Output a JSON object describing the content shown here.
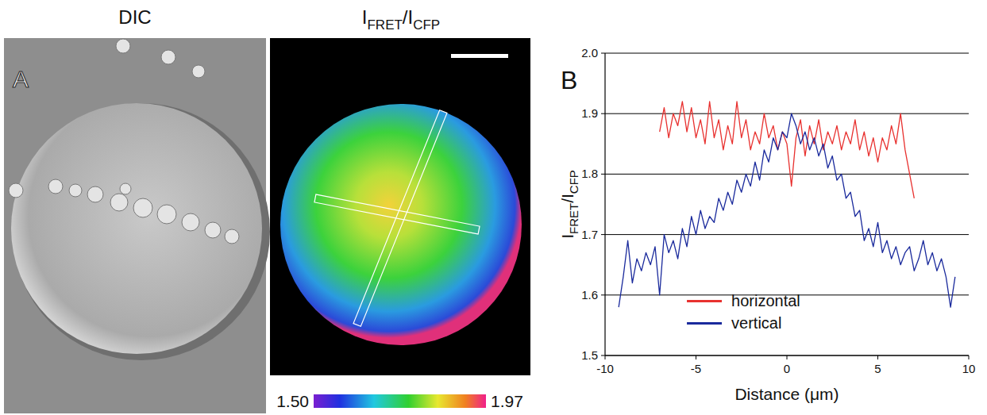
{
  "chart_data": [
    {
      "type": "image",
      "panel_label": "A",
      "title": "DIC"
    },
    {
      "type": "image",
      "title": "IFRET/ICFP",
      "colorbar": {
        "range": [
          1.5,
          1.97
        ],
        "ticks": [
          {
            "value": 1.5,
            "label": "1.50"
          },
          1.97
        ]
      }
    },
    {
      "type": "line",
      "panel_label": "B",
      "x_label": "Distance (μm)",
      "y_label": "IFRET/ICFP",
      "xlim": [
        -10,
        10
      ],
      "xticks": [
        -10,
        -5,
        0,
        5,
        10
      ],
      "ylim": [
        1.5,
        2.0
      ],
      "yticks": [
        1.5,
        1.6,
        1.7,
        1.8,
        1.9,
        {
          "value": 2,
          "label": "2.0"
        }
      ],
      "grid": true,
      "legend": "lower center",
      "series": [
        {
          "name": "horizontal",
          "color": "#e8312f",
          "x": [
            -7.0,
            -6.75,
            -6.5,
            -6.25,
            -6.0,
            -5.75,
            -5.5,
            -5.25,
            -5.0,
            -4.75,
            -4.5,
            -4.25,
            -4.0,
            -3.75,
            -3.5,
            -3.25,
            -3.0,
            -2.75,
            -2.5,
            -2.25,
            -2.0,
            -1.75,
            -1.5,
            -1.25,
            -1.0,
            -0.75,
            -0.5,
            -0.25,
            0.0,
            0.25,
            0.5,
            0.75,
            1.0,
            1.25,
            1.5,
            1.75,
            2.0,
            2.25,
            2.5,
            2.75,
            3.0,
            3.25,
            3.5,
            3.75,
            4.0,
            4.25,
            4.5,
            4.75,
            5.0,
            5.25,
            5.5,
            5.75,
            6.0,
            6.25,
            6.5,
            6.75,
            7.0
          ],
          "values": [
            1.87,
            1.91,
            1.86,
            1.9,
            1.88,
            1.92,
            1.87,
            1.91,
            1.86,
            1.89,
            1.85,
            1.92,
            1.86,
            1.89,
            1.84,
            1.88,
            1.85,
            1.92,
            1.86,
            1.89,
            1.84,
            1.87,
            1.85,
            1.9,
            1.86,
            1.88,
            1.84,
            1.87,
            1.85,
            1.78,
            1.86,
            1.89,
            1.83,
            1.88,
            1.85,
            1.89,
            1.84,
            1.87,
            1.85,
            1.88,
            1.84,
            1.87,
            1.85,
            1.89,
            1.84,
            1.87,
            1.83,
            1.86,
            1.82,
            1.86,
            1.84,
            1.88,
            1.85,
            1.9,
            1.84,
            1.8,
            1.76
          ]
        },
        {
          "name": "vertical",
          "color": "#1a2a9c",
          "x": [
            -9.25,
            -9.0,
            -8.75,
            -8.5,
            -8.25,
            -8.0,
            -7.75,
            -7.5,
            -7.25,
            -7.0,
            -6.75,
            -6.5,
            -6.25,
            -6.0,
            -5.75,
            -5.5,
            -5.25,
            -5.0,
            -4.75,
            -4.5,
            -4.25,
            -4.0,
            -3.75,
            -3.5,
            -3.25,
            -3.0,
            -2.75,
            -2.5,
            -2.25,
            -2.0,
            -1.75,
            -1.5,
            -1.25,
            -1.0,
            -0.75,
            -0.5,
            -0.25,
            0.0,
            0.25,
            0.5,
            0.75,
            1.0,
            1.25,
            1.5,
            1.75,
            2.0,
            2.25,
            2.5,
            2.75,
            3.0,
            3.25,
            3.5,
            3.75,
            4.0,
            4.25,
            4.5,
            4.75,
            5.0,
            5.25,
            5.5,
            5.75,
            6.0,
            6.25,
            6.5,
            6.75,
            7.0,
            7.25,
            7.5,
            7.75,
            8.0,
            8.25,
            8.5,
            8.75,
            9.0,
            9.25
          ],
          "values": [
            1.58,
            1.63,
            1.69,
            1.62,
            1.66,
            1.64,
            1.67,
            1.65,
            1.68,
            1.6,
            1.7,
            1.67,
            1.69,
            1.66,
            1.71,
            1.68,
            1.73,
            1.7,
            1.74,
            1.71,
            1.73,
            1.72,
            1.76,
            1.74,
            1.77,
            1.75,
            1.79,
            1.77,
            1.8,
            1.78,
            1.82,
            1.79,
            1.84,
            1.82,
            1.86,
            1.84,
            1.87,
            1.86,
            1.9,
            1.88,
            1.85,
            1.87,
            1.84,
            1.86,
            1.83,
            1.85,
            1.81,
            1.83,
            1.79,
            1.8,
            1.76,
            1.77,
            1.73,
            1.74,
            1.69,
            1.71,
            1.68,
            1.72,
            1.67,
            1.69,
            1.66,
            1.68,
            1.65,
            1.67,
            1.68,
            1.64,
            1.66,
            1.69,
            1.65,
            1.67,
            1.64,
            1.66,
            1.63,
            1.58,
            1.63
          ]
        }
      ]
    }
  ]
}
